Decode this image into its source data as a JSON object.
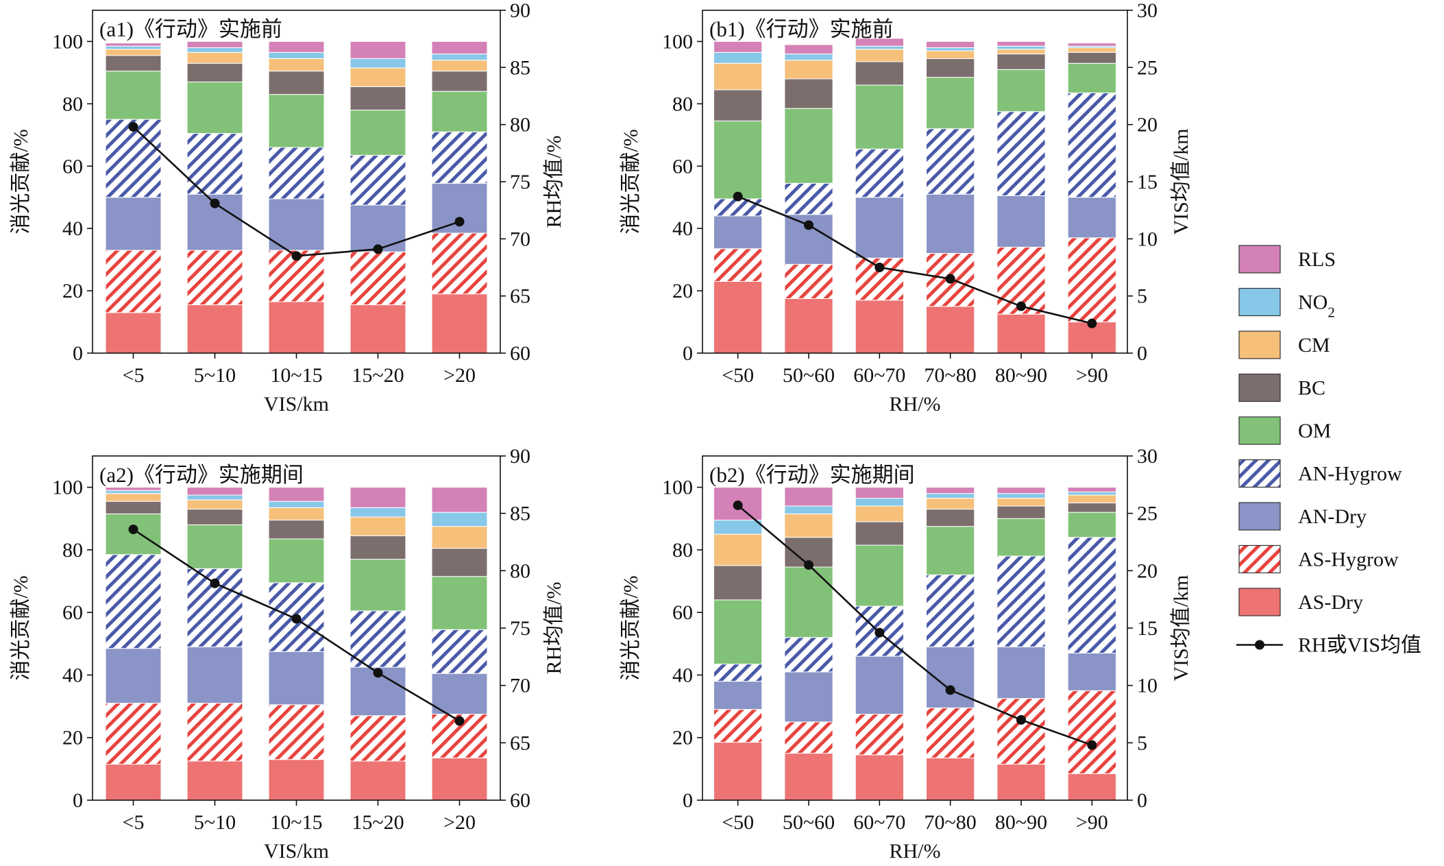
{
  "chart_data": [
    {
      "type": "bar",
      "stacked": true,
      "title": "(a1)《行动》实施前",
      "xlabel": "VIS/km",
      "ylabel": "消光贡献/%",
      "y2label": "RH均值/%",
      "categories": [
        "<5",
        "5~10",
        "10~15",
        "15~20",
        ">20"
      ],
      "ylim": [
        0,
        110
      ],
      "yticks": [
        0,
        20,
        40,
        60,
        80,
        100
      ],
      "y2lim": [
        60,
        90
      ],
      "y2ticks": [
        60,
        65,
        70,
        75,
        80,
        85,
        90
      ],
      "series": [
        {
          "name": "AS-Dry",
          "values": [
            13,
            15.5,
            16.5,
            15.5,
            19
          ]
        },
        {
          "name": "AS-Hygrow",
          "values": [
            20,
            17.5,
            16.5,
            17,
            19.5
          ]
        },
        {
          "name": "AN-Dry",
          "values": [
            17,
            18,
            16.5,
            15,
            16
          ]
        },
        {
          "name": "AN-Hygrow",
          "values": [
            25,
            19.5,
            16.5,
            16,
            16.5
          ]
        },
        {
          "name": "OM",
          "values": [
            15.5,
            16.5,
            17,
            14.5,
            13
          ]
        },
        {
          "name": "BC",
          "values": [
            5,
            6,
            7.5,
            7.5,
            6.5
          ]
        },
        {
          "name": "CM",
          "values": [
            2,
            3.5,
            4,
            6,
            3.5
          ]
        },
        {
          "name": "NO2",
          "values": [
            1,
            1.5,
            2,
            3,
            2
          ]
        },
        {
          "name": "RLS",
          "values": [
            1,
            2,
            3.5,
            5.5,
            4
          ]
        }
      ],
      "line": {
        "name": "RH或VIS均值",
        "values": [
          79.8,
          73.1,
          68.5,
          69.1,
          71.5
        ]
      }
    },
    {
      "type": "bar",
      "stacked": true,
      "title": "(b1)《行动》实施前",
      "xlabel": "RH/%",
      "ylabel": "消光贡献/%",
      "y2label": "VIS均值/km",
      "categories": [
        "<50",
        "50~60",
        "60~70",
        "70~80",
        "80~90",
        ">90"
      ],
      "ylim": [
        0,
        110
      ],
      "yticks": [
        0,
        20,
        40,
        60,
        80,
        100
      ],
      "y2lim": [
        0,
        30
      ],
      "y2ticks": [
        0,
        5,
        10,
        15,
        20,
        25,
        30
      ],
      "series": [
        {
          "name": "AS-Dry",
          "values": [
            23,
            17.5,
            17,
            15,
            12.5,
            10
          ]
        },
        {
          "name": "AS-Hygrow",
          "values": [
            10.5,
            11,
            13.5,
            17,
            21.5,
            27
          ]
        },
        {
          "name": "AN-Dry",
          "values": [
            10.5,
            16,
            19.5,
            19,
            16.5,
            13
          ]
        },
        {
          "name": "AN-Hygrow",
          "values": [
            5.5,
            10,
            15.5,
            21,
            27,
            33.5
          ]
        },
        {
          "name": "OM",
          "values": [
            25,
            24,
            20.5,
            16.5,
            13.5,
            9.5
          ]
        },
        {
          "name": "BC",
          "values": [
            10,
            9.5,
            7.5,
            6,
            5,
            3.5
          ]
        },
        {
          "name": "CM",
          "values": [
            8.5,
            6,
            4,
            2.5,
            1.5,
            1.5
          ]
        },
        {
          "name": "NO2",
          "values": [
            3.5,
            2,
            1,
            1,
            1,
            0.5
          ]
        },
        {
          "name": "RLS",
          "values": [
            3.5,
            3,
            2.5,
            2,
            1.5,
            1
          ]
        }
      ],
      "line": {
        "name": "RH或VIS均值",
        "values": [
          13.7,
          11.2,
          7.5,
          6.5,
          4.1,
          2.6
        ]
      }
    },
    {
      "type": "bar",
      "stacked": true,
      "title": "(a2)《行动》实施期间",
      "xlabel": "VIS/km",
      "ylabel": "消光贡献/%",
      "y2label": "RH均值/%",
      "categories": [
        "<5",
        "5~10",
        "10~15",
        "15~20",
        ">20"
      ],
      "ylim": [
        0,
        110
      ],
      "yticks": [
        0,
        20,
        40,
        60,
        80,
        100
      ],
      "y2lim": [
        60,
        90
      ],
      "y2ticks": [
        60,
        65,
        70,
        75,
        80,
        85,
        90
      ],
      "series": [
        {
          "name": "AS-Dry",
          "values": [
            11.5,
            12.5,
            13,
            12.5,
            13.5
          ]
        },
        {
          "name": "AS-Hygrow",
          "values": [
            19.5,
            18.5,
            17.5,
            14.5,
            14
          ]
        },
        {
          "name": "AN-Dry",
          "values": [
            17.5,
            18,
            17,
            15.5,
            13
          ]
        },
        {
          "name": "AN-Hygrow",
          "values": [
            30,
            25,
            22,
            18,
            14
          ]
        },
        {
          "name": "OM",
          "values": [
            13,
            14,
            14,
            16.5,
            17
          ]
        },
        {
          "name": "BC",
          "values": [
            4,
            5,
            6,
            7.5,
            9
          ]
        },
        {
          "name": "CM",
          "values": [
            2.5,
            3,
            4,
            6,
            7
          ]
        },
        {
          "name": "NO2",
          "values": [
            1,
            1.5,
            2,
            3,
            4.5
          ]
        },
        {
          "name": "RLS",
          "values": [
            1,
            2.5,
            4.5,
            6.5,
            8
          ]
        }
      ],
      "line": {
        "name": "RH或VIS均值",
        "values": [
          83.6,
          78.9,
          75.8,
          71.1,
          66.9
        ]
      }
    },
    {
      "type": "bar",
      "stacked": true,
      "title": "(b2)《行动》实施期间",
      "xlabel": "RH/%",
      "ylabel": "消光贡献/%",
      "y2label": "VIS均值/km",
      "categories": [
        "<50",
        "50~60",
        "60~70",
        "70~80",
        "80~90",
        ">90"
      ],
      "ylim": [
        0,
        110
      ],
      "yticks": [
        0,
        20,
        40,
        60,
        80,
        100
      ],
      "y2lim": [
        0,
        30
      ],
      "y2ticks": [
        0,
        5,
        10,
        15,
        20,
        25,
        30
      ],
      "series": [
        {
          "name": "AS-Dry",
          "values": [
            18.5,
            15,
            14.5,
            13.5,
            11.5,
            8.5
          ]
        },
        {
          "name": "AS-Hygrow",
          "values": [
            10.5,
            10,
            13,
            16,
            21,
            26.5
          ]
        },
        {
          "name": "AN-Dry",
          "values": [
            9,
            16,
            18.5,
            19.5,
            16.5,
            12
          ]
        },
        {
          "name": "AN-Hygrow",
          "values": [
            5.5,
            11,
            16,
            23,
            29,
            37
          ]
        },
        {
          "name": "OM",
          "values": [
            20.5,
            22.5,
            19.5,
            15.5,
            12,
            8
          ]
        },
        {
          "name": "BC",
          "values": [
            11,
            9.5,
            7.5,
            5.5,
            4,
            3
          ]
        },
        {
          "name": "CM",
          "values": [
            10,
            7.5,
            5,
            3.5,
            2.5,
            2.5
          ]
        },
        {
          "name": "NO2",
          "values": [
            4.5,
            2.5,
            2.5,
            1.5,
            1.5,
            1
          ]
        },
        {
          "name": "RLS",
          "values": [
            10.5,
            6,
            3.5,
            2,
            2,
            1.5
          ]
        }
      ],
      "line": {
        "name": "RH或VIS均值",
        "values": [
          25.7,
          20.5,
          14.6,
          9.6,
          7,
          4.8
        ]
      }
    }
  ],
  "legend": {
    "items": [
      {
        "key": "RLS",
        "label": "RLS",
        "sub": ""
      },
      {
        "key": "NO2",
        "label": "NO",
        "sub": "2"
      },
      {
        "key": "CM",
        "label": "CM",
        "sub": ""
      },
      {
        "key": "BC",
        "label": "BC",
        "sub": ""
      },
      {
        "key": "OM",
        "label": "OM",
        "sub": ""
      },
      {
        "key": "AN-Hygrow",
        "label": "AN-Hygrow",
        "sub": ""
      },
      {
        "key": "AN-Dry",
        "label": "AN-Dry",
        "sub": ""
      },
      {
        "key": "AS-Hygrow",
        "label": "AS-Hygrow",
        "sub": ""
      },
      {
        "key": "AS-Dry",
        "label": "AS-Dry",
        "sub": ""
      },
      {
        "key": "line",
        "label": "RH或VIS均值",
        "sub": ""
      }
    ]
  },
  "colors": {
    "AS-Dry": "#ee7373",
    "AS-Hygrow": "#e8443f",
    "AN-Dry": "#8a94c6",
    "AN-Hygrow": "#4a5aa8",
    "OM": "#82c278",
    "BC": "#7d6e6e",
    "CM": "#f6c07a",
    "NO2": "#87c7e8",
    "RLS": "#d481b8",
    "line": "#111111"
  },
  "hatched_series": [
    "AS-Hygrow",
    "AN-Hygrow"
  ]
}
